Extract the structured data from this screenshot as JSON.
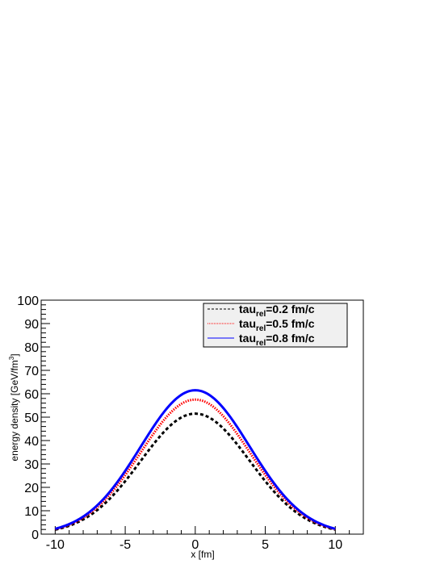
{
  "chart_data": {
    "type": "line",
    "xlabel": "x [fm]",
    "ylabel": "energy density [GeV/fm",
    "ylabel_sup": "3",
    "ylabel_end": "]",
    "xlim": [
      -11,
      12
    ],
    "ylim": [
      0,
      100
    ],
    "x_ticks": [
      -10,
      -5,
      0,
      5,
      10
    ],
    "x_tick_labels": [
      "-10",
      "-5",
      "0",
      "5",
      "10"
    ],
    "y_ticks": [
      0,
      10,
      20,
      30,
      40,
      50,
      60,
      70,
      80,
      90,
      100
    ],
    "y_tick_labels": [
      "0",
      "10",
      "20",
      "30",
      "40",
      "50",
      "60",
      "70",
      "80",
      "90",
      "100"
    ],
    "grid": false,
    "legend_position": "top-right",
    "series": [
      {
        "legend_main": "tau",
        "legend_sub": "rel",
        "legend_rest": "=0.2 fm/c",
        "color": "#000000",
        "style": "dashed",
        "peak": 51.5,
        "sigma": 3.9,
        "x": [
          -10,
          -9,
          -8,
          -7,
          -6,
          -5,
          -4,
          -3,
          -2,
          -1,
          0,
          1,
          2,
          3,
          4,
          5,
          6,
          7,
          8,
          9,
          10
        ],
        "y": [
          1.9,
          3.5,
          6.0,
          10.0,
          15.5,
          22.5,
          30.5,
          38.5,
          45.5,
          50.0,
          51.5,
          50.0,
          45.5,
          38.5,
          30.5,
          22.5,
          15.5,
          10.0,
          6.0,
          3.5,
          1.9
        ]
      },
      {
        "legend_main": "tau",
        "legend_sub": "rel",
        "legend_rest": "=0.5 fm/c",
        "color": "#ff0000",
        "style": "dotted",
        "peak": 57.5,
        "sigma": 3.9,
        "x": [
          -10,
          -9,
          -8,
          -7,
          -6,
          -5,
          -4,
          -3,
          -2,
          -1,
          0,
          1,
          2,
          3,
          4,
          5,
          6,
          7,
          8,
          9,
          10
        ],
        "y": [
          2.2,
          4.0,
          6.8,
          11.2,
          17.3,
          25.1,
          34.0,
          43.0,
          50.8,
          55.8,
          57.5,
          55.8,
          50.8,
          43.0,
          34.0,
          25.1,
          17.3,
          11.2,
          6.8,
          4.0,
          2.2
        ]
      },
      {
        "legend_main": "tau",
        "legend_sub": "rel",
        "legend_rest": "=0.8 fm/c",
        "color": "#0000ff",
        "style": "solid",
        "peak": 61.5,
        "sigma": 3.9,
        "x": [
          -10,
          -9,
          -8,
          -7,
          -6,
          -5,
          -4,
          -3,
          -2,
          -1,
          0,
          1,
          2,
          3,
          4,
          5,
          6,
          7,
          8,
          9,
          10
        ],
        "y": [
          2.4,
          4.3,
          7.3,
          12.0,
          18.5,
          26.8,
          36.4,
          46.0,
          54.3,
          59.7,
          61.5,
          59.7,
          54.3,
          46.0,
          36.4,
          26.8,
          18.5,
          12.0,
          7.3,
          4.3,
          2.4
        ]
      }
    ]
  }
}
